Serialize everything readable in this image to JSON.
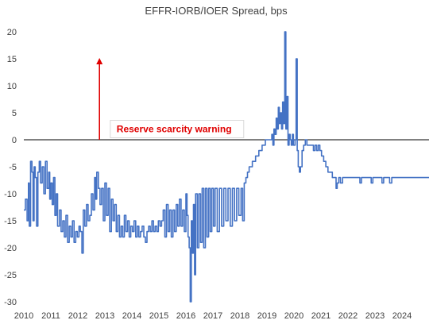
{
  "chart_data": {
    "type": "line",
    "title": "EFFR-IORB/IOER Spread, bps",
    "xlabel": "",
    "ylabel": "",
    "xlim": [
      2010,
      2025
    ],
    "ylim": [
      -30,
      20
    ],
    "x_ticks": [
      "2010",
      "2011",
      "2012",
      "2013",
      "2014",
      "2015",
      "2016",
      "2017",
      "2018",
      "2019",
      "2020",
      "2021",
      "2022",
      "2023",
      "2024"
    ],
    "y_ticks": [
      "20",
      "15",
      "10",
      "5",
      "0",
      "-5",
      "-10",
      "-15",
      "-20",
      "-25",
      "-30"
    ],
    "grid": false,
    "legend": "none",
    "zero_line": 0,
    "colors": {
      "series": "#4472c4",
      "annotation": "#e00000",
      "zero_line": "#000000"
    },
    "annotation": {
      "text": "Reserve scarcity warning",
      "arrow_x": 2012.8,
      "arrow_from": 0,
      "arrow_to": 15,
      "box_x": 2013.2,
      "box_y": 3.6
    },
    "series": [
      {
        "name": "",
        "points": [
          [
            2010.0,
            -13
          ],
          [
            2010.06,
            -11
          ],
          [
            2010.12,
            -15
          ],
          [
            2010.17,
            -8
          ],
          [
            2010.2,
            -16
          ],
          [
            2010.25,
            -4
          ],
          [
            2010.3,
            -6
          ],
          [
            2010.34,
            -15
          ],
          [
            2010.38,
            -5
          ],
          [
            2010.42,
            -7
          ],
          [
            2010.47,
            -16
          ],
          [
            2010.52,
            -6
          ],
          [
            2010.57,
            -4
          ],
          [
            2010.62,
            -8
          ],
          [
            2010.68,
            -5
          ],
          [
            2010.74,
            -10
          ],
          [
            2010.8,
            -4
          ],
          [
            2010.86,
            -9
          ],
          [
            2010.92,
            -6
          ],
          [
            2010.96,
            -11
          ],
          [
            2011.0,
            -8
          ],
          [
            2011.05,
            -12
          ],
          [
            2011.1,
            -7
          ],
          [
            2011.15,
            -14
          ],
          [
            2011.2,
            -10
          ],
          [
            2011.25,
            -16
          ],
          [
            2011.32,
            -13
          ],
          [
            2011.38,
            -17
          ],
          [
            2011.44,
            -15
          ],
          [
            2011.5,
            -18
          ],
          [
            2011.56,
            -14
          ],
          [
            2011.62,
            -19
          ],
          [
            2011.68,
            -16
          ],
          [
            2011.74,
            -18
          ],
          [
            2011.8,
            -15
          ],
          [
            2011.86,
            -19
          ],
          [
            2011.92,
            -17
          ],
          [
            2011.98,
            -18
          ],
          [
            2012.04,
            -16
          ],
          [
            2012.09,
            -17
          ],
          [
            2012.15,
            -21
          ],
          [
            2012.2,
            -13
          ],
          [
            2012.26,
            -16
          ],
          [
            2012.32,
            -12
          ],
          [
            2012.38,
            -15
          ],
          [
            2012.44,
            -14
          ],
          [
            2012.5,
            -10
          ],
          [
            2012.56,
            -13
          ],
          [
            2012.62,
            -7
          ],
          [
            2012.66,
            -11
          ],
          [
            2012.7,
            -6
          ],
          [
            2012.76,
            -9
          ],
          [
            2012.82,
            -12
          ],
          [
            2012.88,
            -9
          ],
          [
            2012.94,
            -15
          ],
          [
            2013.0,
            -8
          ],
          [
            2013.06,
            -14
          ],
          [
            2013.12,
            -9
          ],
          [
            2013.18,
            -17
          ],
          [
            2013.24,
            -11
          ],
          [
            2013.3,
            -15
          ],
          [
            2013.36,
            -12
          ],
          [
            2013.42,
            -17
          ],
          [
            2013.48,
            -14
          ],
          [
            2013.54,
            -18
          ],
          [
            2013.6,
            -16
          ],
          [
            2013.66,
            -18
          ],
          [
            2013.72,
            -14
          ],
          [
            2013.78,
            -17
          ],
          [
            2013.84,
            -15
          ],
          [
            2013.9,
            -18
          ],
          [
            2013.96,
            -16
          ],
          [
            2014.02,
            -17
          ],
          [
            2014.08,
            -15
          ],
          [
            2014.14,
            -18
          ],
          [
            2014.2,
            -16
          ],
          [
            2014.26,
            -18
          ],
          [
            2014.32,
            -17
          ],
          [
            2014.38,
            -16
          ],
          [
            2014.44,
            -18
          ],
          [
            2014.5,
            -19
          ],
          [
            2014.56,
            -17
          ],
          [
            2014.62,
            -16
          ],
          [
            2014.68,
            -17
          ],
          [
            2014.74,
            -15
          ],
          [
            2014.8,
            -17
          ],
          [
            2014.86,
            -16
          ],
          [
            2014.92,
            -17
          ],
          [
            2014.98,
            -15
          ],
          [
            2015.04,
            -16
          ],
          [
            2015.1,
            -15
          ],
          [
            2015.16,
            -13
          ],
          [
            2015.22,
            -18
          ],
          [
            2015.28,
            -12
          ],
          [
            2015.34,
            -17
          ],
          [
            2015.4,
            -13
          ],
          [
            2015.46,
            -18
          ],
          [
            2015.52,
            -13
          ],
          [
            2015.58,
            -17
          ],
          [
            2015.64,
            -12
          ],
          [
            2015.7,
            -16
          ],
          [
            2015.76,
            -11
          ],
          [
            2015.82,
            -16
          ],
          [
            2015.88,
            -13
          ],
          [
            2015.94,
            -17
          ],
          [
            2016.0,
            -10
          ],
          [
            2016.04,
            -14
          ],
          [
            2016.08,
            -18
          ],
          [
            2016.12,
            -20
          ],
          [
            2016.16,
            -30
          ],
          [
            2016.2,
            -15
          ],
          [
            2016.24,
            -21
          ],
          [
            2016.28,
            -12
          ],
          [
            2016.32,
            -25
          ],
          [
            2016.36,
            -10
          ],
          [
            2016.42,
            -20
          ],
          [
            2016.48,
            -10
          ],
          [
            2016.54,
            -19
          ],
          [
            2016.6,
            -9
          ],
          [
            2016.66,
            -20
          ],
          [
            2016.72,
            -9
          ],
          [
            2016.78,
            -18
          ],
          [
            2016.84,
            -9
          ],
          [
            2016.9,
            -17
          ],
          [
            2016.96,
            -9
          ],
          [
            2017.02,
            -16
          ],
          [
            2017.08,
            -9
          ],
          [
            2017.16,
            -17
          ],
          [
            2017.24,
            -9
          ],
          [
            2017.32,
            -16
          ],
          [
            2017.4,
            -9
          ],
          [
            2017.48,
            -15
          ],
          [
            2017.56,
            -9
          ],
          [
            2017.64,
            -16
          ],
          [
            2017.72,
            -9
          ],
          [
            2017.8,
            -15
          ],
          [
            2017.88,
            -9
          ],
          [
            2017.96,
            -14
          ],
          [
            2018.04,
            -9
          ],
          [
            2018.1,
            -15
          ],
          [
            2018.16,
            -8
          ],
          [
            2018.22,
            -7
          ],
          [
            2018.28,
            -6
          ],
          [
            2018.34,
            -5
          ],
          [
            2018.4,
            -5
          ],
          [
            2018.46,
            -4
          ],
          [
            2018.52,
            -4
          ],
          [
            2018.58,
            -3
          ],
          [
            2018.64,
            -3
          ],
          [
            2018.7,
            -2
          ],
          [
            2018.76,
            -2
          ],
          [
            2018.82,
            -1
          ],
          [
            2018.88,
            -1
          ],
          [
            2018.94,
            0
          ],
          [
            2019.0,
            0
          ],
          [
            2019.06,
            0
          ],
          [
            2019.12,
            0
          ],
          [
            2019.18,
            1
          ],
          [
            2019.22,
            -1
          ],
          [
            2019.26,
            2
          ],
          [
            2019.3,
            1
          ],
          [
            2019.34,
            4
          ],
          [
            2019.38,
            2
          ],
          [
            2019.42,
            6
          ],
          [
            2019.46,
            3
          ],
          [
            2019.5,
            5
          ],
          [
            2019.54,
            2
          ],
          [
            2019.58,
            7
          ],
          [
            2019.62,
            3
          ],
          [
            2019.66,
            20
          ],
          [
            2019.7,
            2
          ],
          [
            2019.74,
            8
          ],
          [
            2019.78,
            -1
          ],
          [
            2019.82,
            1
          ],
          [
            2019.86,
            0
          ],
          [
            2019.9,
            -1
          ],
          [
            2019.94,
            1
          ],
          [
            2019.98,
            -1
          ],
          [
            2020.04,
            0
          ],
          [
            2020.08,
            15
          ],
          [
            2020.12,
            -2
          ],
          [
            2020.16,
            -5
          ],
          [
            2020.2,
            -6
          ],
          [
            2020.24,
            -5
          ],
          [
            2020.3,
            -2
          ],
          [
            2020.36,
            -1
          ],
          [
            2020.42,
            0
          ],
          [
            2020.48,
            -1
          ],
          [
            2020.54,
            -1
          ],
          [
            2020.6,
            -1
          ],
          [
            2020.66,
            -1
          ],
          [
            2020.72,
            -2
          ],
          [
            2020.78,
            -1
          ],
          [
            2020.84,
            -2
          ],
          [
            2020.9,
            -1
          ],
          [
            2020.96,
            -2
          ],
          [
            2021.02,
            -3
          ],
          [
            2021.1,
            -4
          ],
          [
            2021.18,
            -5
          ],
          [
            2021.26,
            -6
          ],
          [
            2021.34,
            -6
          ],
          [
            2021.42,
            -7
          ],
          [
            2021.5,
            -7
          ],
          [
            2021.56,
            -9
          ],
          [
            2021.6,
            -8
          ],
          [
            2021.66,
            -7
          ],
          [
            2021.72,
            -8
          ],
          [
            2021.8,
            -7
          ],
          [
            2022.0,
            -7
          ],
          [
            2022.4,
            -7
          ],
          [
            2022.44,
            -8
          ],
          [
            2022.5,
            -7
          ],
          [
            2022.8,
            -7
          ],
          [
            2022.86,
            -8
          ],
          [
            2022.92,
            -7
          ],
          [
            2023.2,
            -7
          ],
          [
            2023.26,
            -8
          ],
          [
            2023.32,
            -7
          ],
          [
            2023.5,
            -7
          ],
          [
            2023.54,
            -8
          ],
          [
            2023.62,
            -7
          ],
          [
            2024.0,
            -7
          ],
          [
            2024.4,
            -7
          ],
          [
            2025.0,
            -7
          ]
        ]
      }
    ]
  }
}
